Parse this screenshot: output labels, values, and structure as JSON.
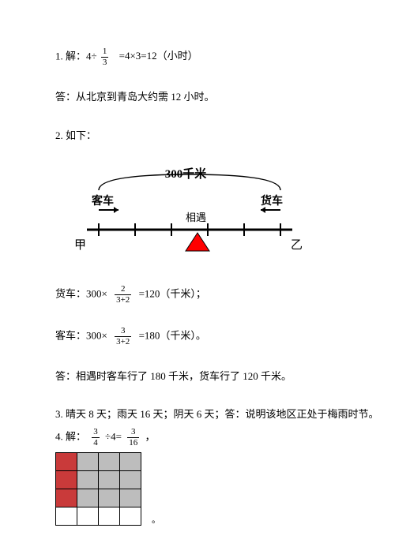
{
  "p1": {
    "prefix": "1. 解：4÷",
    "frac_num": "1",
    "frac_den": "3",
    "rest": "=4×3=12（小时）",
    "answer": "答：从北京到青岛大约需 12 小时。"
  },
  "p2": {
    "heading": "2. 如下：",
    "diagram": {
      "distance_label": "300千米",
      "left_top": "客车",
      "right_top": "货车",
      "left_end": "甲",
      "right_end": "乙",
      "meeting": "相遇",
      "tick_color": "#000000",
      "marker_color": "#ff0000"
    },
    "truck": {
      "prefix": "货车：300×",
      "frac_num": "2",
      "frac_den": "3+2",
      "rest": "=120（千米）；"
    },
    "bus": {
      "prefix": "客车：300×",
      "frac_num": "3",
      "frac_den": "3+2",
      "rest": "=180（千米）。"
    },
    "answer": "答：相遇时客车行了 180 千米，货车行了 120 千米。"
  },
  "p3": {
    "text": "3. 晴天 8 天；雨天 16 天；阴天 6 天；答：说明该地区正处于梅雨时节。"
  },
  "p4": {
    "prefix": "4. 解：",
    "frac1_num": "3",
    "frac1_den": "4",
    "mid": "÷4=",
    "frac2_num": "3",
    "frac2_den": "16",
    "tail": "，",
    "grid": {
      "rows": 4,
      "cols": 4,
      "colors": {
        "shaded": "#bdbdbd",
        "highlight": "#c93a3a",
        "blank": "#ffffff"
      },
      "cells": [
        [
          "highlight",
          "shaded",
          "shaded",
          "shaded"
        ],
        [
          "highlight",
          "shaded",
          "shaded",
          "shaded"
        ],
        [
          "highlight",
          "shaded",
          "shaded",
          "shaded"
        ],
        [
          "blank",
          "blank",
          "blank",
          "blank"
        ]
      ]
    }
  }
}
